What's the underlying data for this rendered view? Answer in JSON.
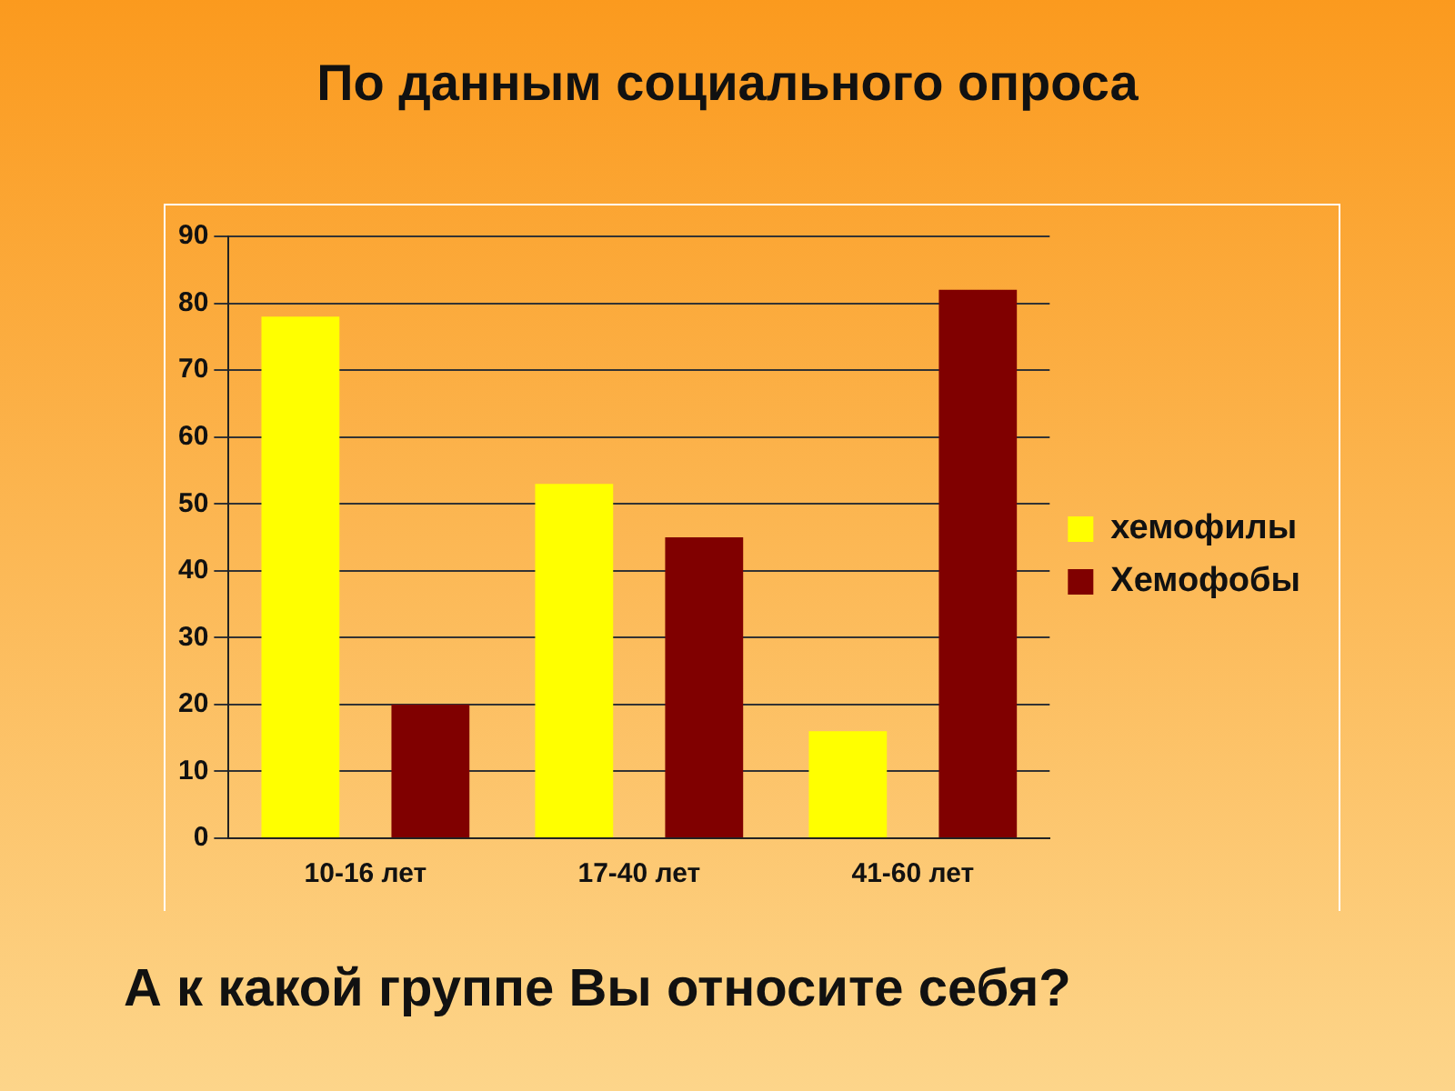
{
  "chart_data": {
    "type": "bar",
    "title": "По данным социального опроса",
    "categories": [
      "10-16 лет",
      "17-40 лет",
      "41-60 лет"
    ],
    "series": [
      {
        "name": "хемофилы",
        "color": "#ffff00",
        "values": [
          78,
          53,
          16
        ]
      },
      {
        "name": "Хемофобы",
        "color": "#800000",
        "values": [
          20,
          45,
          82
        ]
      }
    ],
    "ylim": [
      0,
      90
    ],
    "yticks": [
      0,
      10,
      20,
      30,
      40,
      50,
      60,
      70,
      80,
      90
    ],
    "grid": "y",
    "legend": "right",
    "annotations": [
      "А к какой группе Вы относите себя?"
    ]
  }
}
